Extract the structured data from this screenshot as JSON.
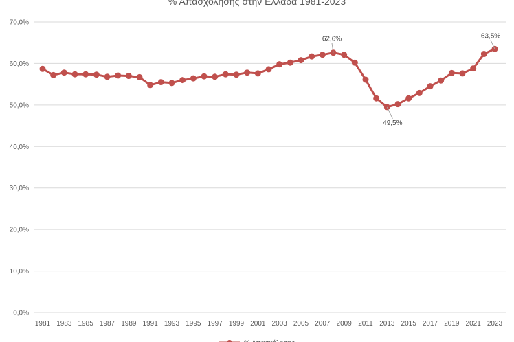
{
  "chart_data": {
    "type": "line",
    "title": "% Απασχόλησης στην Ελλάδα 1981-2023",
    "xlabel": "",
    "ylabel": "",
    "ylim": [
      0,
      70
    ],
    "y_ticks": [
      "0,0%",
      "10,0%",
      "20,0%",
      "30,0%",
      "40,0%",
      "50,0%",
      "60,0%",
      "70,0%"
    ],
    "x_tick_labels": [
      "1981",
      "1983",
      "1985",
      "1987",
      "1989",
      "1991",
      "1993",
      "1995",
      "1997",
      "1999",
      "2001",
      "2003",
      "2005",
      "2007",
      "2009",
      "2011",
      "2013",
      "2015",
      "2017",
      "2019",
      "2021",
      "2023"
    ],
    "grid": true,
    "legend_position": "bottom",
    "series": [
      {
        "name": "% Απασχόλησης",
        "color": "#c0504d",
        "x": [
          1981,
          1982,
          1983,
          1984,
          1985,
          1986,
          1987,
          1988,
          1989,
          1990,
          1991,
          1992,
          1993,
          1994,
          1995,
          1996,
          1997,
          1998,
          1999,
          2000,
          2001,
          2002,
          2003,
          2004,
          2005,
          2006,
          2007,
          2008,
          2009,
          2010,
          2011,
          2012,
          2013,
          2014,
          2015,
          2016,
          2017,
          2018,
          2019,
          2020,
          2021,
          2022,
          2023
        ],
        "values": [
          58.7,
          57.2,
          57.8,
          57.4,
          57.4,
          57.3,
          56.8,
          57.1,
          57.0,
          56.7,
          54.8,
          55.5,
          55.3,
          56.0,
          56.4,
          56.9,
          56.8,
          57.4,
          57.3,
          57.8,
          57.6,
          58.6,
          59.8,
          60.2,
          60.8,
          61.7,
          62.1,
          62.6,
          62.1,
          60.2,
          56.1,
          51.6,
          49.5,
          50.2,
          51.6,
          52.9,
          54.5,
          55.9,
          57.7,
          57.6,
          58.8,
          62.3,
          63.5
        ]
      }
    ],
    "annotations": [
      {
        "year": 2008,
        "label": "62,6%"
      },
      {
        "year": 2013,
        "label": "49,5%"
      },
      {
        "year": 2023,
        "label": "63,5%"
      }
    ]
  }
}
